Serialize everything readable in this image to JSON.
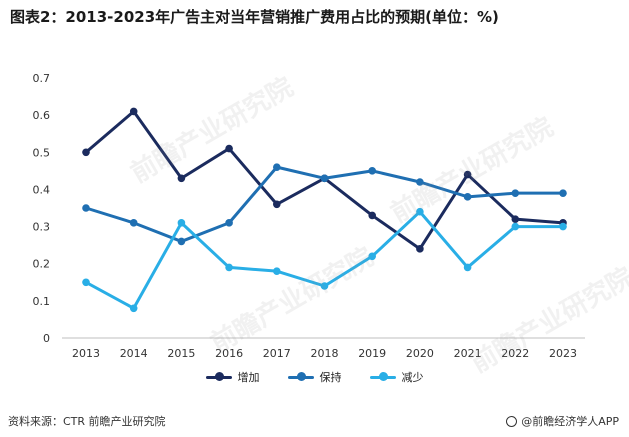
{
  "title": "图表2：2013-2023年广告主对当年营销推广费用占比的预期(单位：%)",
  "source": "资料来源：CTR 前瞻产业研究院",
  "brand": "@前瞻经济学人APP",
  "watermark": "前瞻产业研究院",
  "chart_data": {
    "type": "line",
    "categories": [
      "2013",
      "2014",
      "2015",
      "2016",
      "2017",
      "2018",
      "2019",
      "2020",
      "2021",
      "2022",
      "2023"
    ],
    "ylim": [
      0,
      0.7
    ],
    "yticks": [
      "0",
      "0.1",
      "0.2",
      "0.3",
      "0.4",
      "0.5",
      "0.6",
      "0.7"
    ],
    "grid": false,
    "legend_position": "bottom",
    "series": [
      {
        "name": "增加",
        "color": "#1b2b5e",
        "values": [
          0.5,
          0.61,
          0.43,
          0.51,
          0.36,
          0.43,
          0.33,
          0.24,
          0.44,
          0.32,
          0.31
        ]
      },
      {
        "name": "保持",
        "color": "#1f6fb2",
        "values": [
          0.35,
          0.31,
          0.26,
          0.31,
          0.46,
          0.43,
          0.45,
          0.42,
          0.38,
          0.39,
          0.39
        ]
      },
      {
        "name": "减少",
        "color": "#29aee6",
        "values": [
          0.15,
          0.08,
          0.31,
          0.19,
          0.18,
          0.14,
          0.22,
          0.34,
          0.19,
          0.3,
          0.3
        ]
      }
    ]
  }
}
